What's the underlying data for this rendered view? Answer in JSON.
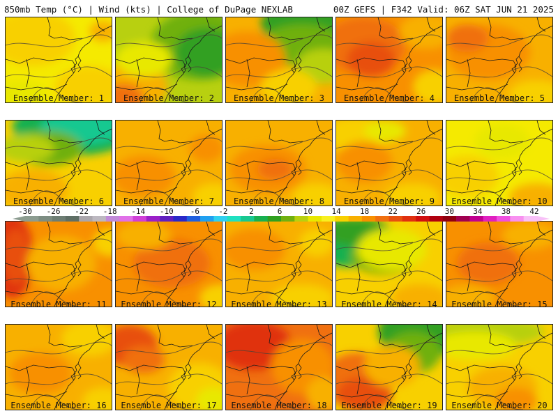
{
  "header": {
    "left": "850mb Temp (°C) | Wind (kts) | College of DuPage NEXLAB",
    "right": "00Z GEFS | F342 Valid: 06Z SAT JUN 21 2025"
  },
  "colorbar": {
    "labels": [
      "-30",
      "-26",
      "-22",
      "-18",
      "-14",
      "-10",
      "-6",
      "-2",
      "2",
      "6",
      "10",
      "14",
      "18",
      "22",
      "26",
      "30",
      "34",
      "38",
      "42"
    ],
    "colors": [
      "#8c9c90",
      "#7d8d82",
      "#6e7e74",
      "#5f6f66",
      "#aaa6ac",
      "#bcb8c0",
      "#c08ad8",
      "#e070e8",
      "#d040d8",
      "#9a20c8",
      "#6020c0",
      "#2a28c8",
      "#2060e0",
      "#20a0f0",
      "#30d0f0",
      "#20e0c0",
      "#18c890",
      "#18b050",
      "#30a020",
      "#70b010",
      "#b8d010",
      "#e8e800",
      "#f8f020",
      "#f8d000",
      "#f8b000",
      "#f89000",
      "#f07010",
      "#e85010",
      "#e03010",
      "#d01010",
      "#b00010",
      "#900010",
      "#a00050",
      "#c00090",
      "#e020c0",
      "#f050e0",
      "#f890f0",
      "#f8c0f8"
    ]
  },
  "panels": [
    {
      "label": "Ensemble Member: 1",
      "base": "#f5ea00",
      "blobs": [
        [
          "#f8d000",
          40,
          30,
          60,
          40
        ],
        [
          "#f8d000",
          120,
          100,
          50,
          30
        ],
        [
          "#e8e800",
          20,
          110,
          40,
          20
        ],
        [
          "#f8b000",
          140,
          20,
          20,
          15
        ]
      ]
    },
    {
      "label": "Ensemble Member: 2",
      "base": "#b8d010",
      "blobs": [
        [
          "#70b010",
          120,
          40,
          70,
          50
        ],
        [
          "#30a020",
          130,
          50,
          45,
          35
        ],
        [
          "#f8b000",
          20,
          100,
          55,
          35
        ],
        [
          "#f07010",
          10,
          115,
          30,
          20
        ],
        [
          "#e8e800",
          40,
          60,
          40,
          25
        ]
      ]
    },
    {
      "label": "Ensemble Member: 3",
      "base": "#f8b000",
      "blobs": [
        [
          "#30a020",
          120,
          10,
          70,
          40
        ],
        [
          "#70b010",
          110,
          40,
          60,
          30
        ],
        [
          "#b8d010",
          140,
          70,
          40,
          25
        ],
        [
          "#f89000",
          30,
          60,
          55,
          40
        ],
        [
          "#f8d000",
          90,
          100,
          40,
          25
        ]
      ]
    },
    {
      "label": "Ensemble Member: 4",
      "base": "#f89000",
      "blobs": [
        [
          "#f07010",
          40,
          40,
          60,
          40
        ],
        [
          "#e85010",
          50,
          60,
          35,
          25
        ],
        [
          "#f8b000",
          130,
          20,
          40,
          25
        ],
        [
          "#f8d000",
          140,
          100,
          30,
          25
        ]
      ]
    },
    {
      "label": "Ensemble Member: 5",
      "base": "#f8b000",
      "blobs": [
        [
          "#f89000",
          60,
          50,
          60,
          40
        ],
        [
          "#f07010",
          30,
          30,
          30,
          20
        ],
        [
          "#f8d000",
          130,
          110,
          40,
          20
        ]
      ]
    },
    {
      "label": "Ensemble Member: 6",
      "base": "#f8d000",
      "blobs": [
        [
          "#18b050",
          100,
          10,
          90,
          40
        ],
        [
          "#18c890",
          110,
          10,
          60,
          25
        ],
        [
          "#70b010",
          60,
          40,
          50,
          25
        ],
        [
          "#b8d010",
          30,
          40,
          40,
          20
        ],
        [
          "#f8b000",
          40,
          100,
          50,
          30
        ]
      ]
    },
    {
      "label": "Ensemble Member: 7",
      "base": "#f8b000",
      "blobs": [
        [
          "#f89000",
          40,
          80,
          45,
          30
        ],
        [
          "#f8d000",
          140,
          110,
          30,
          20
        ],
        [
          "#f89000",
          130,
          40,
          25,
          20
        ]
      ]
    },
    {
      "label": "Ensemble Member: 8",
      "base": "#f8b000",
      "blobs": [
        [
          "#f89000",
          60,
          70,
          55,
          35
        ],
        [
          "#f07010",
          70,
          70,
          25,
          15
        ],
        [
          "#f8d000",
          130,
          110,
          35,
          20
        ]
      ]
    },
    {
      "label": "Ensemble Member: 9",
      "base": "#f8b000",
      "blobs": [
        [
          "#f8d000",
          30,
          20,
          50,
          25
        ],
        [
          "#e8e800",
          70,
          15,
          30,
          15
        ],
        [
          "#f89000",
          40,
          60,
          40,
          30
        ],
        [
          "#f8d000",
          110,
          110,
          40,
          20
        ]
      ]
    },
    {
      "label": "Ensemble Member: 10",
      "base": "#f5ea00",
      "blobs": [
        [
          "#f8d000",
          30,
          80,
          45,
          30
        ],
        [
          "#f8b000",
          130,
          110,
          40,
          20
        ],
        [
          "#e8e800",
          80,
          30,
          40,
          25
        ]
      ]
    },
    {
      "label": "Ensemble Member: 11",
      "base": "#f89000",
      "blobs": [
        [
          "#e03010",
          10,
          50,
          30,
          60
        ],
        [
          "#e85010",
          15,
          50,
          20,
          40
        ],
        [
          "#f8b000",
          80,
          60,
          50,
          40
        ],
        [
          "#f8d000",
          150,
          30,
          25,
          20
        ]
      ]
    },
    {
      "label": "Ensemble Member: 12",
      "base": "#f89000",
      "blobs": [
        [
          "#f07010",
          80,
          60,
          55,
          35
        ],
        [
          "#f8b000",
          40,
          20,
          40,
          20
        ],
        [
          "#f8d000",
          150,
          110,
          30,
          20
        ]
      ]
    },
    {
      "label": "Ensemble Member: 13",
      "base": "#f8b000",
      "blobs": [
        [
          "#f89000",
          40,
          40,
          45,
          30
        ],
        [
          "#f8d000",
          110,
          110,
          45,
          20
        ],
        [
          "#f8d000",
          130,
          30,
          25,
          20
        ]
      ]
    },
    {
      "label": "Ensemble Member: 14",
      "base": "#f8d000",
      "blobs": [
        [
          "#18b050",
          20,
          30,
          60,
          35
        ],
        [
          "#30a020",
          30,
          15,
          50,
          20
        ],
        [
          "#70b010",
          70,
          50,
          50,
          25
        ],
        [
          "#e8e800",
          80,
          40,
          50,
          30
        ],
        [
          "#f8b000",
          120,
          110,
          40,
          20
        ]
      ]
    },
    {
      "label": "Ensemble Member: 15",
      "base": "#f89000",
      "blobs": [
        [
          "#f07010",
          60,
          60,
          45,
          30
        ],
        [
          "#f8b000",
          120,
          20,
          40,
          20
        ],
        [
          "#f8b000",
          30,
          110,
          40,
          20
        ]
      ]
    },
    {
      "label": "Ensemble Member: 16",
      "base": "#f8b000",
      "blobs": [
        [
          "#f89000",
          50,
          70,
          45,
          30
        ],
        [
          "#f8d000",
          120,
          20,
          40,
          25
        ],
        [
          "#f8d000",
          140,
          110,
          30,
          20
        ]
      ]
    },
    {
      "label": "Ensemble Member: 17",
      "base": "#f8b000",
      "blobs": [
        [
          "#e85010",
          20,
          30,
          40,
          30
        ],
        [
          "#f07010",
          40,
          50,
          30,
          20
        ],
        [
          "#f8d000",
          120,
          90,
          45,
          35
        ],
        [
          "#e8e800",
          140,
          110,
          25,
          20
        ]
      ]
    },
    {
      "label": "Ensemble Member: 18",
      "base": "#f07010",
      "blobs": [
        [
          "#e03010",
          40,
          30,
          55,
          35
        ],
        [
          "#f89000",
          110,
          60,
          45,
          40
        ],
        [
          "#f8b000",
          140,
          100,
          25,
          25
        ]
      ]
    },
    {
      "label": "Ensemble Member: 19",
      "base": "#f8d000",
      "blobs": [
        [
          "#30a020",
          120,
          10,
          60,
          40
        ],
        [
          "#70b010",
          110,
          40,
          40,
          30
        ],
        [
          "#f07010",
          30,
          80,
          50,
          40
        ],
        [
          "#e85010",
          40,
          100,
          40,
          25
        ],
        [
          "#f8b000",
          80,
          60,
          40,
          30
        ]
      ]
    },
    {
      "label": "Ensemble Member: 20",
      "base": "#f8d000",
      "blobs": [
        [
          "#b8d010",
          60,
          10,
          80,
          20
        ],
        [
          "#e8e800",
          40,
          30,
          60,
          20
        ],
        [
          "#f8b000",
          80,
          90,
          50,
          30
        ],
        [
          "#f89000",
          100,
          110,
          30,
          20
        ]
      ]
    }
  ]
}
